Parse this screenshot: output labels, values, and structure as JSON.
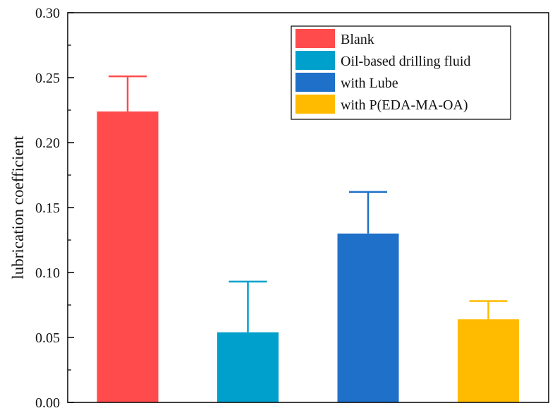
{
  "chart_data": {
    "type": "bar",
    "ylabel": "lubrication coefficient",
    "ylim": [
      0,
      0.3
    ],
    "yticks": [
      "0.00",
      "0.05",
      "0.10",
      "0.15",
      "0.20",
      "0.25",
      "0.30"
    ],
    "ytick_values": [
      0,
      0.05,
      0.1,
      0.15,
      0.2,
      0.25,
      0.3
    ],
    "grid": false,
    "legend_position": "top-right",
    "series": [
      {
        "name": "Blank",
        "value": 0.224,
        "error": 0.027,
        "color": "#ff4b4b"
      },
      {
        "name": "Oil-based drilling fluid",
        "value": 0.054,
        "error": 0.039,
        "color": "#00a0cc"
      },
      {
        "name": "with Lube",
        "value": 0.13,
        "error": 0.032,
        "color": "#1f70c8"
      },
      {
        "name": "with P(EDA-MA-OA)",
        "value": 0.064,
        "error": 0.014,
        "color": "#ffbb00"
      }
    ]
  }
}
